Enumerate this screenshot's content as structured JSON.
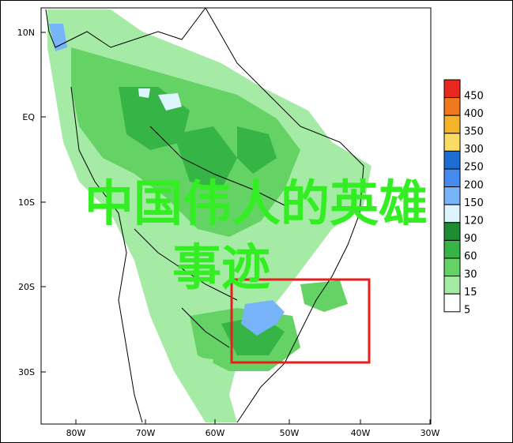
{
  "overlay": {
    "line1": "中国伟人的英雄",
    "line2": "事迹"
  },
  "axes": {
    "y_ticks": [
      "10N",
      "EQ",
      "10S",
      "20S",
      "30S"
    ],
    "x_ticks": [
      "80W",
      "70W",
      "60W",
      "50W",
      "40W",
      "30W"
    ]
  },
  "colorbar": {
    "labels": [
      "450",
      "400",
      "350",
      "300",
      "250",
      "200",
      "150",
      "120",
      "90",
      "60",
      "30",
      "15",
      "5"
    ],
    "colors": [
      "#e8281e",
      "#f0781e",
      "#f5b428",
      "#fadc64",
      "#1e6ed2",
      "#468cf0",
      "#78b4fa",
      "#dcf5ff",
      "#1e8c32",
      "#37b446",
      "#64d264",
      "#a5eba5",
      "#ffffff"
    ]
  },
  "highlight_box_color": "#e81e1e"
}
